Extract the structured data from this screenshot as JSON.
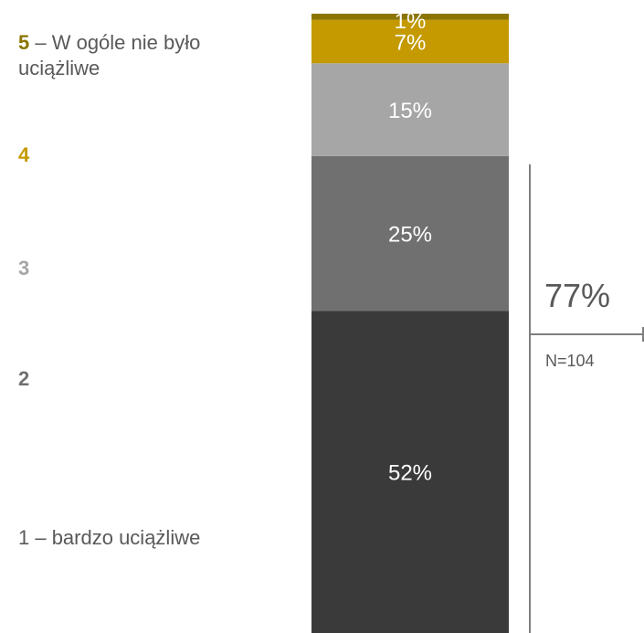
{
  "legend": {
    "item5": {
      "num": "5",
      "text": " – W ogóle nie było uciążliwe"
    },
    "item4": {
      "num": "4"
    },
    "item3": {
      "num": "3"
    },
    "item2": {
      "num": "2"
    },
    "item1": {
      "text": "1 – bardzo uciążliwe"
    }
  },
  "summary": {
    "value": "77%",
    "n": "N=104"
  },
  "colors": {
    "level5": "#8b7500",
    "level4": "#c49a00",
    "level3": "#a6a6a6",
    "level2": "#707070",
    "level1": "#3a3a3a",
    "legend5": "#8b7500",
    "legend4": "#c49a00",
    "legend3": "#a6a6a6",
    "legend2": "#707070",
    "legend1": "#595959"
  },
  "chart_data": {
    "type": "bar",
    "stacked": true,
    "categories": [
      ""
    ],
    "series": [
      {
        "name": "1 – bardzo uciążliwe",
        "values": [
          52
        ],
        "label": "52%"
      },
      {
        "name": "2",
        "values": [
          25
        ],
        "label": "25%"
      },
      {
        "name": "3",
        "values": [
          15
        ],
        "label": "15%"
      },
      {
        "name": "4",
        "values": [
          7
        ],
        "label": "7%"
      },
      {
        "name": "5 – W ogóle nie było uciążliwe",
        "values": [
          1
        ],
        "label": "1%"
      }
    ]
  }
}
